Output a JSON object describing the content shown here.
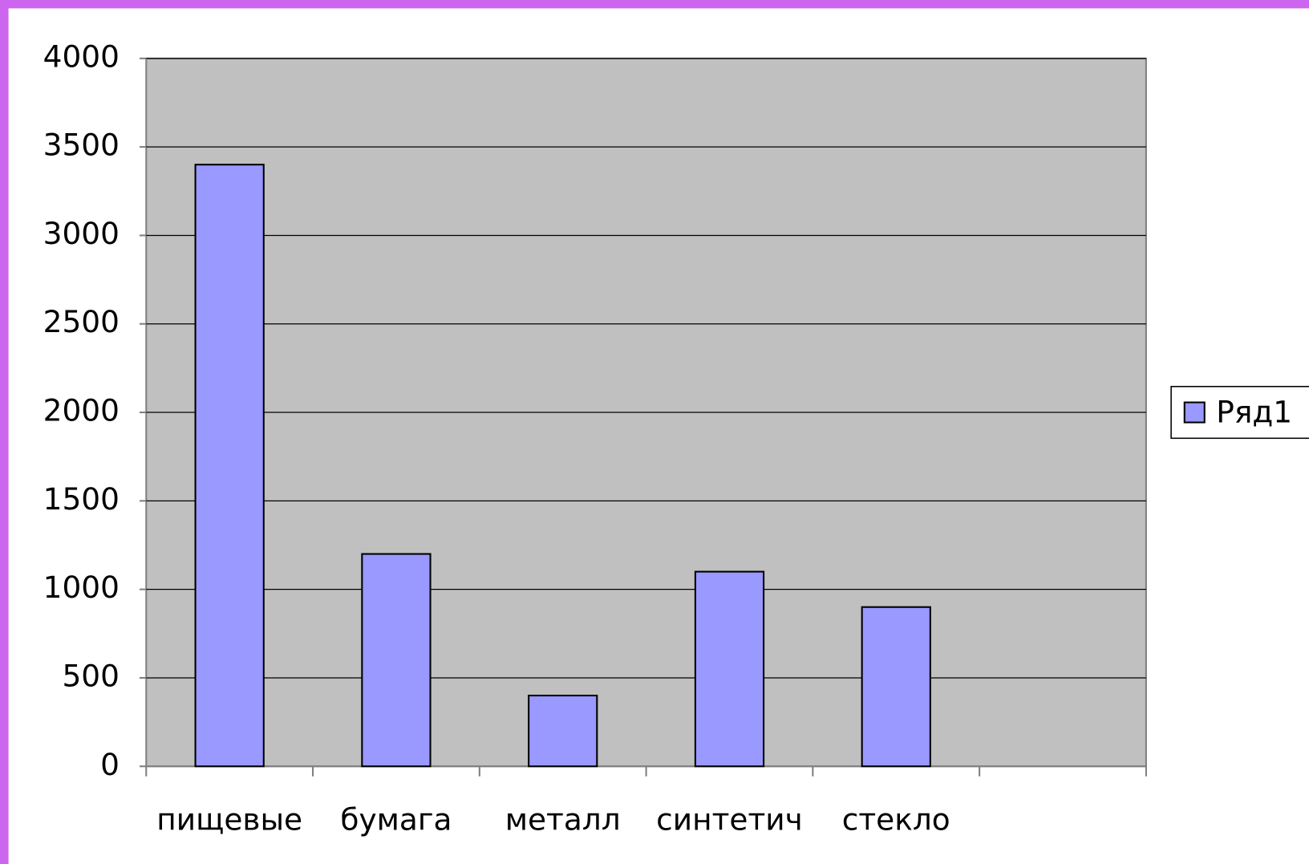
{
  "chart_data": {
    "type": "bar",
    "categories": [
      "пищевые",
      "бумага",
      "металл",
      "синтетич",
      "стекло",
      null
    ],
    "series": [
      {
        "name": "Ряд1",
        "color": "#9999ff",
        "values": [
          3400,
          1200,
          400,
          1100,
          900,
          null
        ]
      }
    ],
    "ylim": [
      0,
      4000
    ],
    "yticks": [
      0,
      500,
      1000,
      1500,
      2000,
      2500,
      3000,
      3500,
      4000
    ],
    "grid": true,
    "legend": "right"
  }
}
